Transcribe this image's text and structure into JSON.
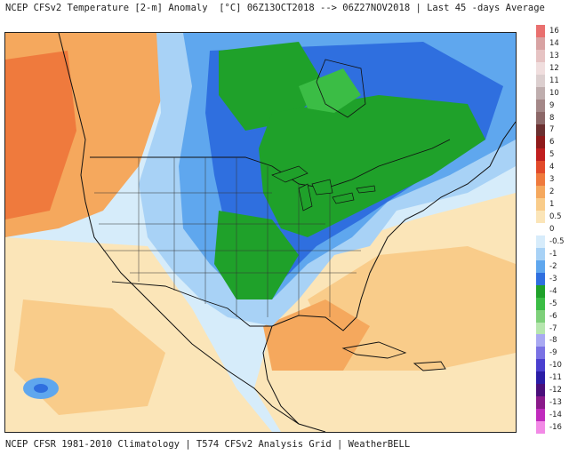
{
  "header": {
    "title": "NCEP CFSv2 Temperature [2-m] Anomaly  [°C] 06Z13OCT2018 --> 06Z27NOV2018 | Last 45 -days Average"
  },
  "footer": {
    "text": "NCEP CFSR 1981-2010 Climatology | T574 CFSv2 Analysis Grid | WeatherBELL"
  },
  "legend": {
    "entries": [
      {
        "label": "16",
        "color": "#e9706f"
      },
      {
        "label": "14",
        "color": "#d8a3a3"
      },
      {
        "label": "13",
        "color": "#e6c3c3"
      },
      {
        "label": "12",
        "color": "#f0dede"
      },
      {
        "label": "11",
        "color": "#dccfcf"
      },
      {
        "label": "10",
        "color": "#bfaeae"
      },
      {
        "label": "9",
        "color": "#a48888"
      },
      {
        "label": "8",
        "color": "#8c6868"
      },
      {
        "label": "7",
        "color": "#6b3030"
      },
      {
        "label": "6",
        "color": "#8f1a1a"
      },
      {
        "label": "5",
        "color": "#c01f1f"
      },
      {
        "label": "4",
        "color": "#e24a2a"
      },
      {
        "label": "3",
        "color": "#ef7a3d"
      },
      {
        "label": "2",
        "color": "#f5a85d"
      },
      {
        "label": "1",
        "color": "#f9cc8a"
      },
      {
        "label": "0.5",
        "color": "#fbe5b8"
      },
      {
        "label": "0",
        "color": "#ffffff"
      },
      {
        "label": "-0.5",
        "color": "#d7ecfb"
      },
      {
        "label": "-1",
        "color": "#a8d2f6"
      },
      {
        "label": "-2",
        "color": "#5fa7ee"
      },
      {
        "label": "-3",
        "color": "#2f6fdf"
      },
      {
        "label": "-4",
        "color": "#1fa12a"
      },
      {
        "label": "-5",
        "color": "#3bbd45"
      },
      {
        "label": "-6",
        "color": "#7ed07a"
      },
      {
        "label": "-7",
        "color": "#b6e6ae"
      },
      {
        "label": "-8",
        "color": "#a9a9f2"
      },
      {
        "label": "-9",
        "color": "#7a72e4"
      },
      {
        "label": "-10",
        "color": "#4a3fcf"
      },
      {
        "label": "-11",
        "color": "#2a1da6"
      },
      {
        "label": "-12",
        "color": "#4a0f7a"
      },
      {
        "label": "-13",
        "color": "#8a1a8a"
      },
      {
        "label": "-14",
        "color": "#c02bbd"
      },
      {
        "label": "-16",
        "color": "#f28ae6"
      }
    ]
  },
  "colors": {
    "warm_ocean": "#f9cc8a",
    "warm_strong": "#ef7a3d",
    "cold_light": "#a8d2f6",
    "cold_mid": "#5fa7ee",
    "cold_strong": "#2f6fdf",
    "cold_green": "#1fa12a",
    "boundary": "#111111"
  }
}
